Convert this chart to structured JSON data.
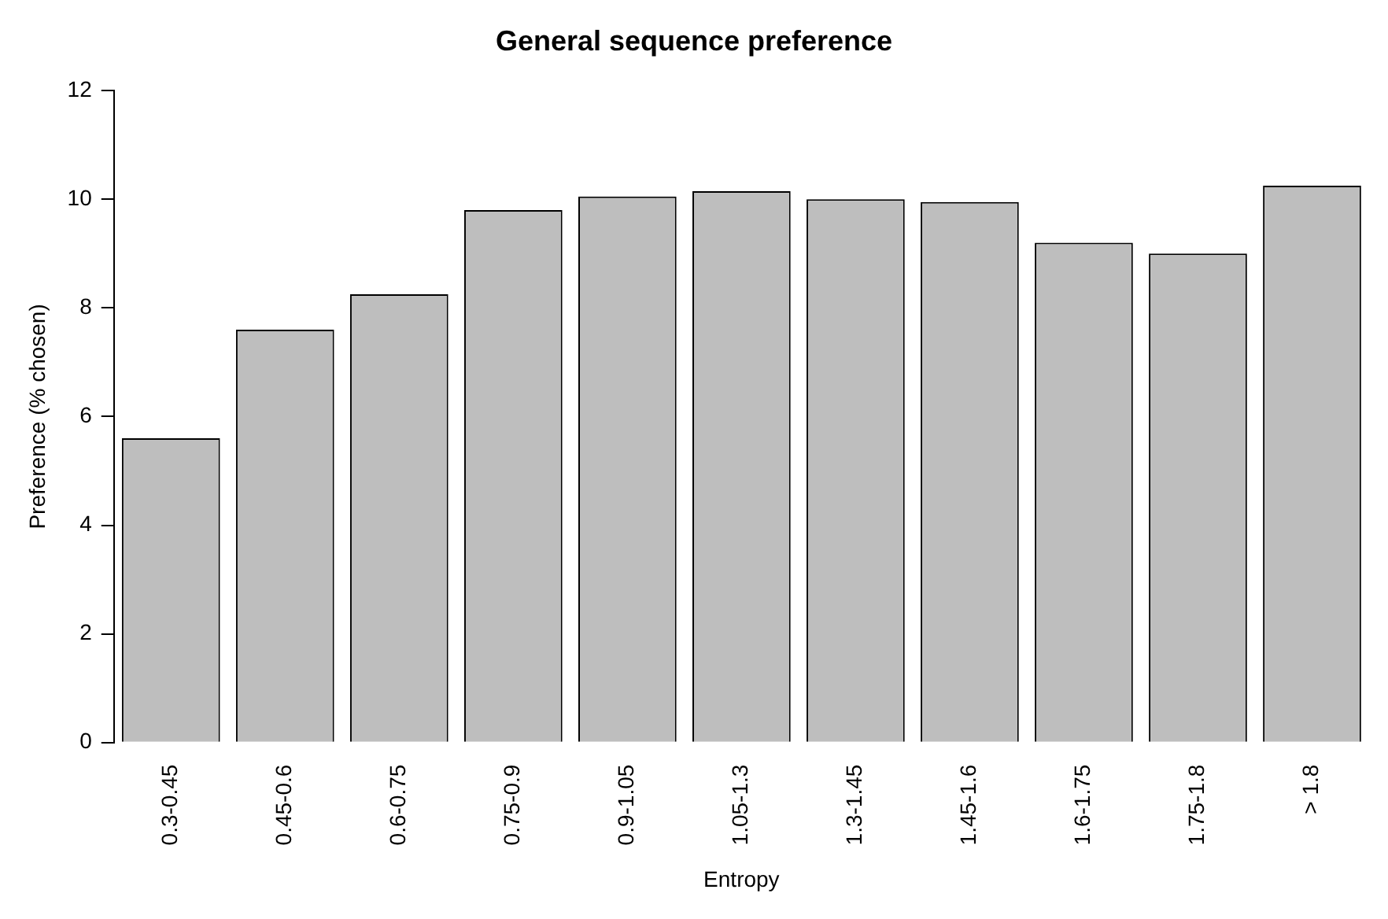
{
  "chart_data": {
    "type": "bar",
    "title": "General sequence preference",
    "xlabel": "Entropy",
    "ylabel": "Preference (% chosen)",
    "categories": [
      "0.3-0.45",
      "0.45-0.6",
      "0.6-0.75",
      "0.75-0.9",
      "0.9-1.05",
      "1.05-1.3",
      "1.3-1.45",
      "1.45-1.6",
      "1.6-1.75",
      "1.75-1.8",
      "> 1.8"
    ],
    "values": [
      5.6,
      7.6,
      8.25,
      9.8,
      10.05,
      10.15,
      10.0,
      9.95,
      9.2,
      9.0,
      10.25
    ],
    "color": "#bebebe",
    "ylim": [
      0,
      12
    ],
    "yticks": [
      0,
      2,
      4,
      6,
      8,
      10,
      12
    ],
    "grid": false,
    "legend": false
  }
}
